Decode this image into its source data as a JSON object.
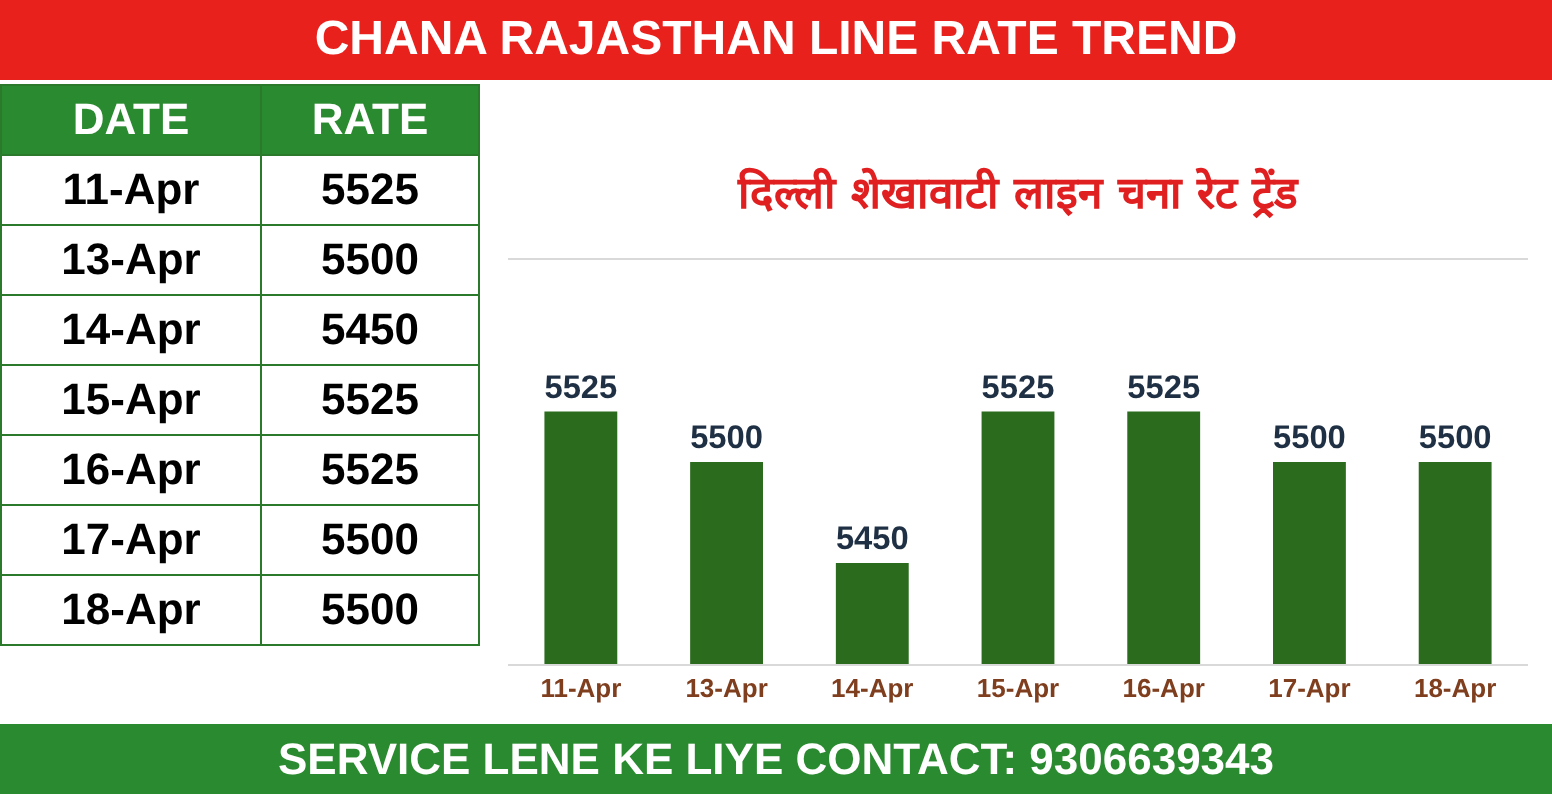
{
  "chart_data": [
    {
      "type": "bar",
      "title": "दिल्ली शेखावाटी लाइन चना रेट ट्रेंड",
      "subtitle": "CHANA RAJASTHAN LINE RATE TREND",
      "categories": [
        "11-Apr",
        "13-Apr",
        "14-Apr",
        "15-Apr",
        "16-Apr",
        "17-Apr",
        "18-Apr"
      ],
      "values": [
        5525,
        5500,
        5450,
        5525,
        5525,
        5500,
        5500
      ],
      "color": "#2b6b1e",
      "ylim": [
        5400,
        5600
      ],
      "data_labels": true,
      "tick_labels": "x",
      "annotations": [
        "SERVICE LENE KE LIYE CONTACT: 9306639343"
      ]
    },
    {
      "type": "other",
      "annotations": [
        "DATE",
        "RATE",
        "11-Apr",
        "5525",
        "13-Apr",
        "5500",
        "14-Apr",
        "5450",
        "15-Apr",
        "5525",
        "16-Apr",
        "5525",
        "17-Apr",
        "5500",
        "18-Apr",
        "5500"
      ]
    }
  ]
}
